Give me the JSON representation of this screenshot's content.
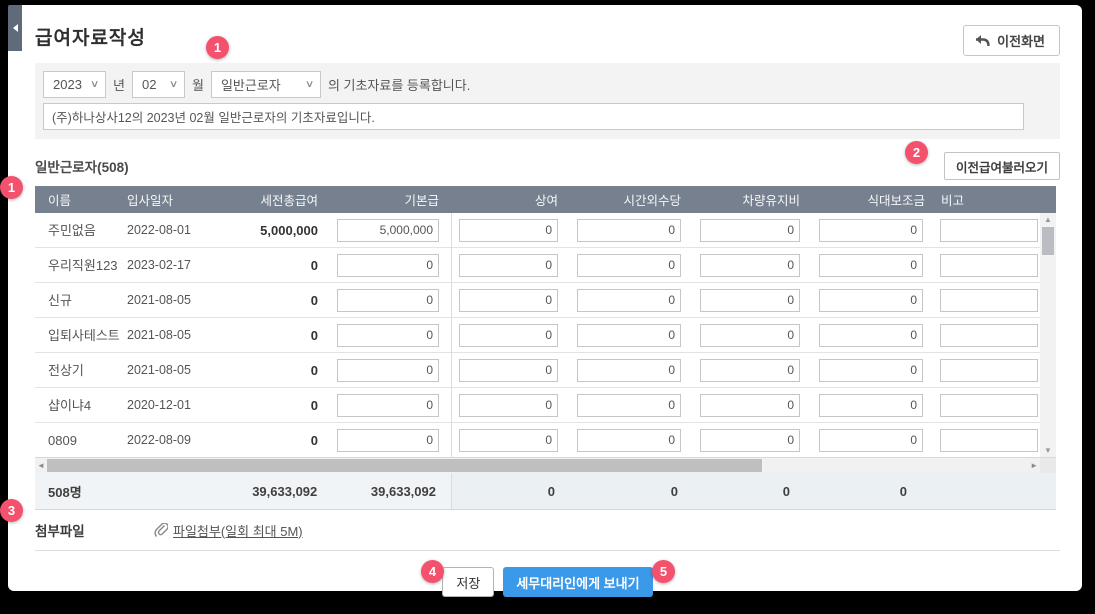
{
  "page": {
    "title": "급여자료작성",
    "back_button": "이전화면"
  },
  "filter": {
    "year": "2023",
    "year_suffix": "년",
    "month": "02",
    "month_suffix": "월",
    "worker_type": "일반근로자",
    "sentence_suffix": "의 기초자료를 등록합니다.",
    "memo_value": "(주)하나상사12의 2023년 02월 일반근로자의 기초자료입니다."
  },
  "section": {
    "title": "일반근로자(508)",
    "load_prev_button": "이전급여불러오기"
  },
  "table": {
    "headers": [
      "이름",
      "입사일자",
      "세전총급여",
      "기본급",
      "상여",
      "시간외수당",
      "차량유지비",
      "식대보조금",
      "비고"
    ],
    "rows": [
      {
        "name": "주민없음",
        "hire_date": "2022-08-01",
        "pretax_total": "5,000,000",
        "base_pay": "5,000,000",
        "bonus": "0",
        "overtime": "0",
        "vehicle": "0",
        "meal": "0",
        "remark": ""
      },
      {
        "name": "우리직원123",
        "hire_date": "2023-02-17",
        "pretax_total": "0",
        "base_pay": "0",
        "bonus": "0",
        "overtime": "0",
        "vehicle": "0",
        "meal": "0",
        "remark": ""
      },
      {
        "name": "신규",
        "hire_date": "2021-08-05",
        "pretax_total": "0",
        "base_pay": "0",
        "bonus": "0",
        "overtime": "0",
        "vehicle": "0",
        "meal": "0",
        "remark": ""
      },
      {
        "name": "입퇴사테스트",
        "hire_date": "2021-08-05",
        "pretax_total": "0",
        "base_pay": "0",
        "bonus": "0",
        "overtime": "0",
        "vehicle": "0",
        "meal": "0",
        "remark": ""
      },
      {
        "name": "전상기",
        "hire_date": "2021-08-05",
        "pretax_total": "0",
        "base_pay": "0",
        "bonus": "0",
        "overtime": "0",
        "vehicle": "0",
        "meal": "0",
        "remark": ""
      },
      {
        "name": "샵이냐4",
        "hire_date": "2020-12-01",
        "pretax_total": "0",
        "base_pay": "0",
        "bonus": "0",
        "overtime": "0",
        "vehicle": "0",
        "meal": "0",
        "remark": ""
      },
      {
        "name": "0809",
        "hire_date": "2022-08-09",
        "pretax_total": "0",
        "base_pay": "0",
        "bonus": "0",
        "overtime": "0",
        "vehicle": "0",
        "meal": "0",
        "remark": ""
      }
    ],
    "totals": {
      "count": "508명",
      "pretax_total": "39,633,092",
      "base_pay": "39,633,092",
      "bonus": "0",
      "overtime": "0",
      "vehicle": "0",
      "meal": "0"
    }
  },
  "attachment": {
    "label": "첨부파일",
    "link": "파일첨부(일회 최대 5M)"
  },
  "footer": {
    "save_button": "저장",
    "send_button": "세무대리인에게 보내기"
  },
  "badges": [
    "1",
    "1",
    "2",
    "3",
    "4",
    "5"
  ],
  "colors": {
    "accent": "#f4516c",
    "primary_button": "#3a99e8",
    "table_header_bg": "#76808e"
  }
}
